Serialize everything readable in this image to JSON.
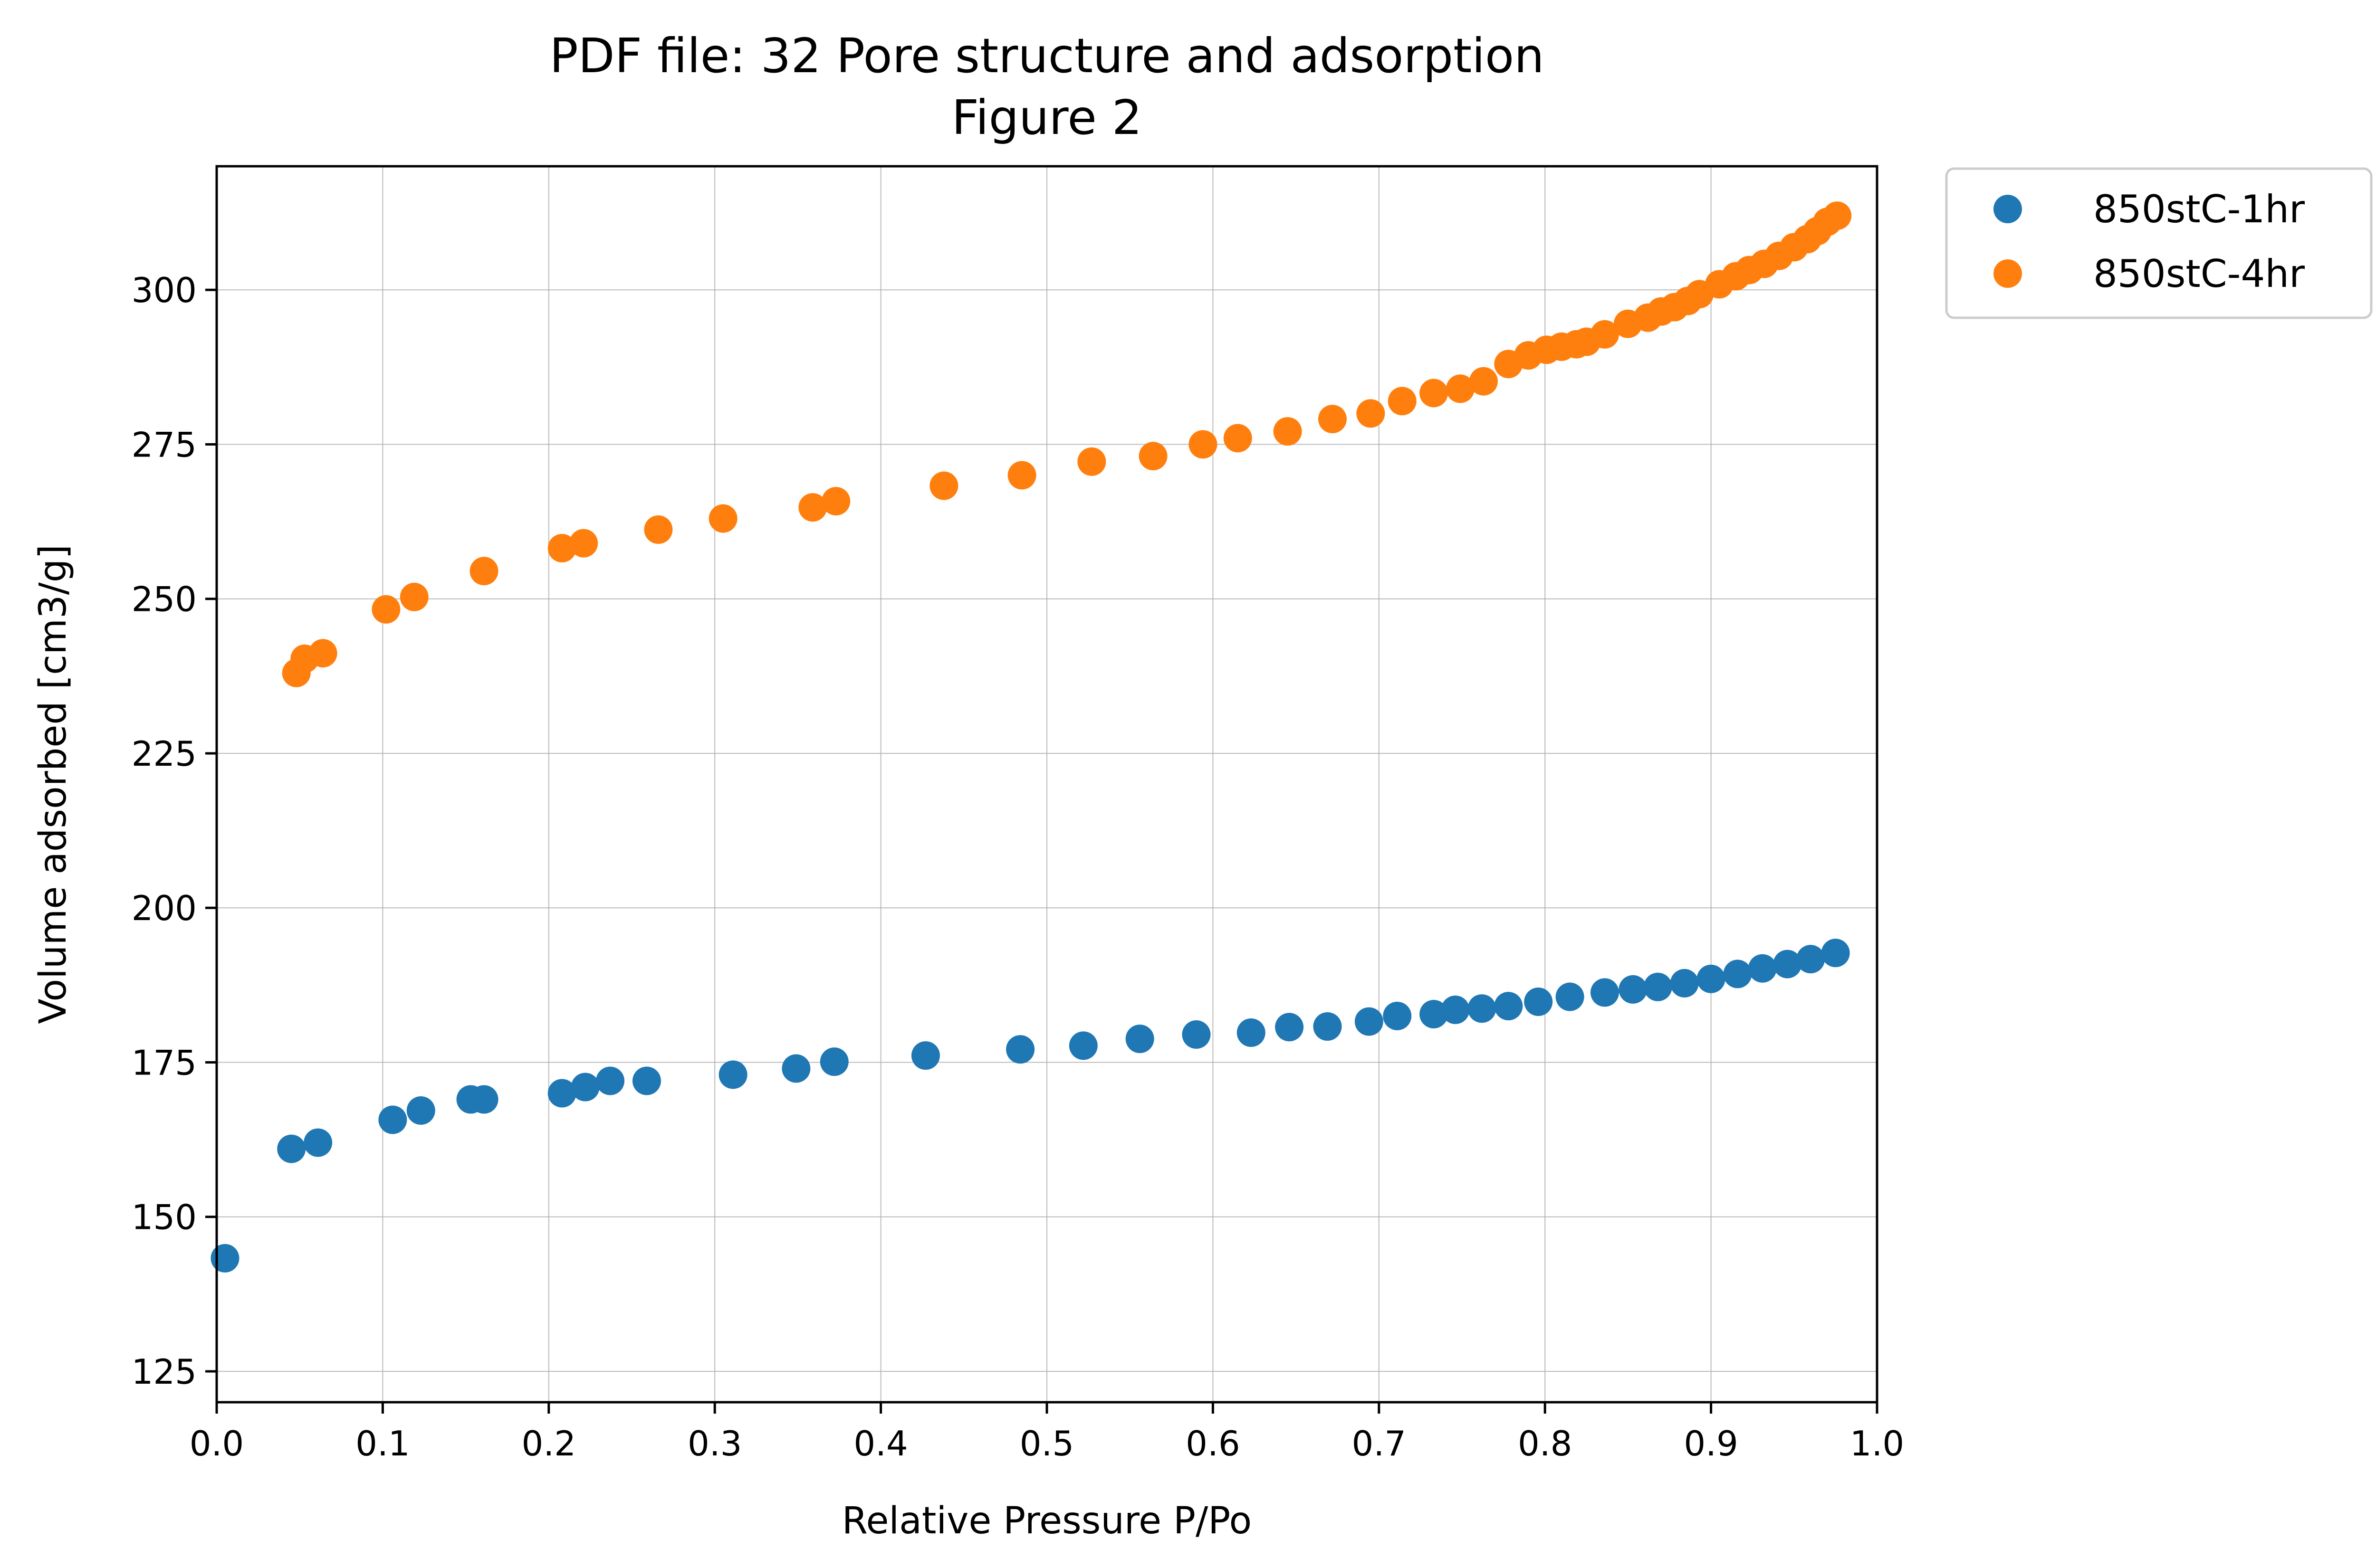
{
  "chart_data": {
    "type": "scatter",
    "title": "PDF file: 32 Pore structure and adsorption",
    "subtitle": "Figure 2",
    "xlabel": "Relative Pressure P/Po",
    "ylabel": "Volume adsorbed [cm3/g]",
    "xlim": [
      0.0,
      1.0
    ],
    "ylim": [
      120,
      320
    ],
    "xticks": [
      "0.0",
      "0.1",
      "0.2",
      "0.3",
      "0.4",
      "0.5",
      "0.6",
      "0.7",
      "0.8",
      "0.9",
      "1.0"
    ],
    "yticks": [
      "125",
      "150",
      "175",
      "200",
      "225",
      "250",
      "275",
      "300"
    ],
    "grid": true,
    "legend_position": "outside-top-right",
    "series": [
      {
        "name": "850stC-1hr",
        "color": "#1f77b4",
        "x": [
          0.005,
          0.045,
          0.061,
          0.106,
          0.123,
          0.153,
          0.161,
          0.208,
          0.222,
          0.237,
          0.259,
          0.311,
          0.349,
          0.372,
          0.427,
          0.484,
          0.522,
          0.556,
          0.59,
          0.623,
          0.646,
          0.669,
          0.694,
          0.711,
          0.733,
          0.746,
          0.762,
          0.778,
          0.796,
          0.815,
          0.836,
          0.853,
          0.868,
          0.884,
          0.9,
          0.916,
          0.931,
          0.946,
          0.96,
          0.975
        ],
        "y": [
          143.3,
          161.0,
          162.0,
          165.7,
          167.2,
          169.0,
          169.0,
          170.0,
          171.0,
          172.0,
          172.0,
          173.0,
          174.0,
          175.1,
          176.1,
          177.1,
          177.7,
          178.8,
          179.5,
          179.8,
          180.7,
          180.8,
          181.6,
          182.5,
          182.8,
          183.5,
          183.7,
          184.1,
          184.8,
          185.6,
          186.3,
          186.8,
          187.2,
          187.8,
          188.5,
          189.3,
          190.2,
          190.9,
          191.7,
          192.7
        ]
      },
      {
        "name": "850stC-4hr",
        "color": "#ff7f0e",
        "x": [
          0.048,
          0.053,
          0.064,
          0.102,
          0.119,
          0.161,
          0.208,
          0.221,
          0.266,
          0.305,
          0.359,
          0.373,
          0.438,
          0.485,
          0.527,
          0.564,
          0.594,
          0.615,
          0.645,
          0.672,
          0.695,
          0.714,
          0.733,
          0.749,
          0.763,
          0.778,
          0.79,
          0.801,
          0.81,
          0.819,
          0.825,
          0.836,
          0.85,
          0.862,
          0.87,
          0.878,
          0.886,
          0.893,
          0.905,
          0.915,
          0.923,
          0.932,
          0.941,
          0.95,
          0.958,
          0.964,
          0.97,
          0.976
        ],
        "y": [
          238.0,
          240.3,
          241.2,
          248.3,
          250.3,
          254.5,
          258.2,
          259.0,
          261.2,
          263.0,
          264.8,
          265.8,
          268.3,
          270.0,
          272.2,
          273.1,
          275.0,
          276.0,
          277.1,
          279.1,
          280.0,
          282.0,
          283.3,
          284.0,
          285.2,
          288.0,
          289.4,
          290.3,
          290.8,
          291.2,
          291.6,
          292.8,
          294.5,
          295.5,
          296.5,
          297.2,
          298.2,
          299.3,
          300.9,
          302.2,
          303.2,
          304.2,
          305.5,
          306.9,
          308.2,
          309.5,
          311.0,
          312.0
        ]
      }
    ]
  }
}
